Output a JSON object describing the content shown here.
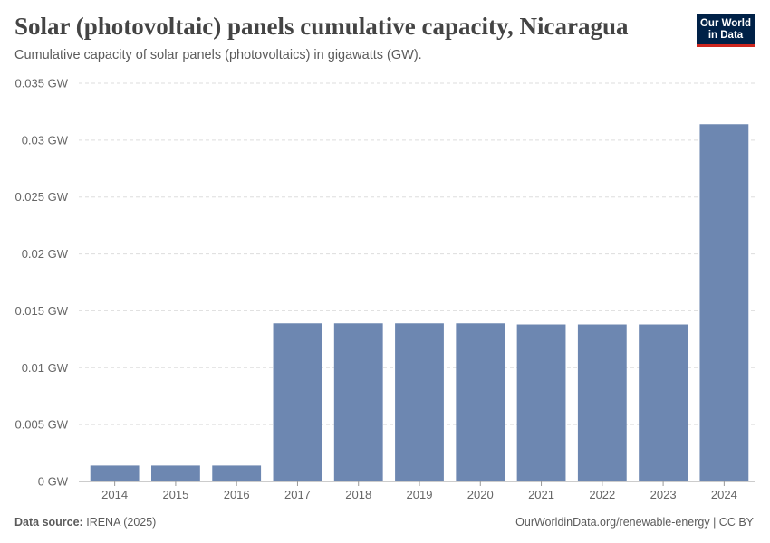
{
  "header": {
    "title": "Solar (photovoltaic) panels cumulative capacity, Nicaragua",
    "subtitle": "Cumulative capacity of solar panels (photovoltaics) in gigawatts (GW)."
  },
  "logo": {
    "line1": "Our World",
    "line2": "in Data"
  },
  "footer": {
    "source_label": "Data source:",
    "source_value": "IRENA (2025)",
    "attribution": "OurWorldinData.org/renewable-energy | CC BY"
  },
  "colors": {
    "bar": "#6d87b1",
    "grid": "#dddddd",
    "axis_text": "#666666"
  },
  "chart_data": {
    "type": "bar",
    "title": "Solar (photovoltaic) panels cumulative capacity, Nicaragua",
    "ylabel": "GW",
    "categories": [
      "2014",
      "2015",
      "2016",
      "2017",
      "2018",
      "2019",
      "2020",
      "2021",
      "2022",
      "2023",
      "2024"
    ],
    "values": [
      0.0014,
      0.0014,
      0.0014,
      0.0139,
      0.0139,
      0.0139,
      0.0139,
      0.0138,
      0.0138,
      0.0138,
      0.0314
    ],
    "ylim": [
      0,
      0.035
    ],
    "yticks": [
      0,
      0.005,
      0.01,
      0.015,
      0.02,
      0.025,
      0.03,
      0.035
    ],
    "ytick_labels": [
      "0 GW",
      "0.005 GW",
      "0.01 GW",
      "0.015 GW",
      "0.02 GW",
      "0.025 GW",
      "0.03 GW",
      "0.035 GW"
    ],
    "grid": true
  }
}
